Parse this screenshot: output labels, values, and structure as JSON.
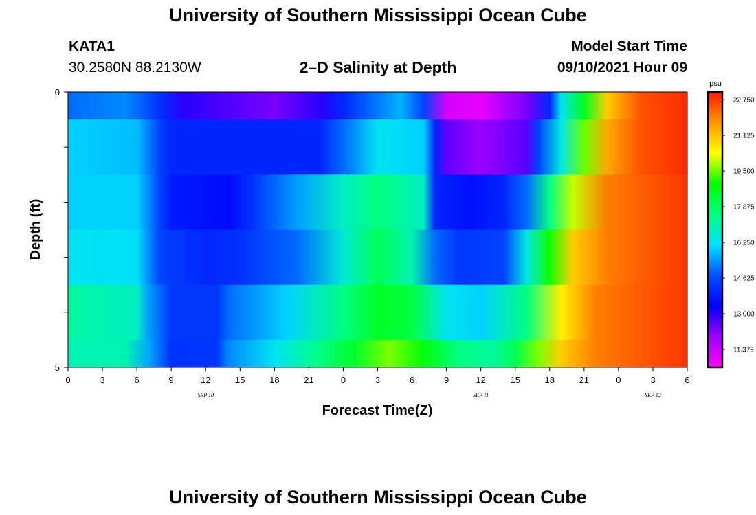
{
  "header": {
    "title": "University of Southern Mississippi Ocean Cube",
    "station_id": "KATA1",
    "coordinates": "30.2580N  88.2130W",
    "plot_title": "2–D Salinity at Depth",
    "model_start_label": "Model Start Time",
    "model_start_value": "09/10/2021 Hour 09"
  },
  "footer": {
    "title": "University of Southern Mississippi Ocean Cube"
  },
  "chart_data": {
    "type": "heatmap",
    "xlabel": "Forecast Time(Z)",
    "ylabel": "Depth (ft)",
    "ylim": [
      0,
      5
    ],
    "y_ticks": [
      0,
      5
    ],
    "x_tick_labels": [
      "0",
      "3",
      "6",
      "9",
      "12",
      "15",
      "18",
      "21",
      "0",
      "3",
      "6",
      "9",
      "12",
      "15",
      "18",
      "21",
      "0",
      "3",
      "6"
    ],
    "x_date_labels": [
      {
        "text": "SEP 10",
        "at_hour": 12
      },
      {
        "text": "SEP 11",
        "at_hour": 36
      },
      {
        "text": "SEP 12",
        "at_hour": 51
      }
    ],
    "x_range_hours": [
      0,
      54
    ],
    "colorbar": {
      "unit": "psu",
      "tick_labels": [
        "22.750",
        "21.125",
        "19.500",
        "17.875",
        "16.250",
        "14.625",
        "13.000",
        "11.375"
      ],
      "tick_values": [
        22.75,
        21.125,
        19.5,
        17.875,
        16.25,
        14.625,
        13.0,
        11.375
      ],
      "range": [
        10.56,
        23.1
      ],
      "colors": [
        "#ff00ff",
        "#a000ff",
        "#0000ff",
        "#0050ff",
        "#00e0ff",
        "#00ff80",
        "#00ff00",
        "#ffff00",
        "#ff9900",
        "#ff1a00"
      ]
    },
    "depth_layers": [
      {
        "depth_range": [
          0,
          0.5
        ],
        "points": [
          [
            0,
            15.0
          ],
          [
            5,
            15.3
          ],
          [
            8,
            14.2
          ],
          [
            10,
            13.0
          ],
          [
            18,
            12.3
          ],
          [
            22,
            13.0
          ],
          [
            24,
            14.0
          ],
          [
            29,
            15.7
          ],
          [
            31,
            14.5
          ],
          [
            33,
            11.2
          ],
          [
            36,
            10.9
          ],
          [
            40,
            12.3
          ],
          [
            42,
            14.0
          ],
          [
            43,
            16.3
          ],
          [
            45,
            18.6
          ],
          [
            47,
            21.0
          ],
          [
            50,
            22.5
          ],
          [
            54,
            22.9
          ]
        ]
      },
      {
        "depth_range": [
          0.5,
          1.5
        ],
        "points": [
          [
            0,
            16.0
          ],
          [
            6,
            15.8
          ],
          [
            8,
            14.5
          ],
          [
            9,
            14.0
          ],
          [
            22,
            14.0
          ],
          [
            24,
            15.0
          ],
          [
            27,
            16.3
          ],
          [
            31,
            16.0
          ],
          [
            32,
            14.0
          ],
          [
            33,
            12.5
          ],
          [
            36,
            12.0
          ],
          [
            40,
            12.6
          ],
          [
            41,
            14.5
          ],
          [
            43,
            16.5
          ],
          [
            45,
            19.5
          ],
          [
            47,
            21.5
          ],
          [
            50,
            22.5
          ],
          [
            54,
            22.9
          ]
        ]
      },
      {
        "depth_range": [
          1.5,
          2.5
        ],
        "points": [
          [
            0,
            16.0
          ],
          [
            6,
            16.0
          ],
          [
            8,
            14.5
          ],
          [
            9,
            13.8
          ],
          [
            14,
            13.5
          ],
          [
            16,
            14.2
          ],
          [
            20,
            15.5
          ],
          [
            24,
            16.8
          ],
          [
            27,
            17.6
          ],
          [
            31,
            16.8
          ],
          [
            32,
            14.0
          ],
          [
            35,
            13.6
          ],
          [
            38,
            14.0
          ],
          [
            40,
            15.0
          ],
          [
            42,
            17.5
          ],
          [
            44,
            20.0
          ],
          [
            47,
            22.0
          ],
          [
            54,
            22.8
          ]
        ]
      },
      {
        "depth_range": [
          2.5,
          3.5
        ],
        "points": [
          [
            0,
            16.3
          ],
          [
            6,
            16.2
          ],
          [
            8,
            14.5
          ],
          [
            12,
            14.0
          ],
          [
            15,
            14.2
          ],
          [
            20,
            15.0
          ],
          [
            24,
            16.6
          ],
          [
            27,
            18.0
          ],
          [
            30,
            17.0
          ],
          [
            32,
            15.0
          ],
          [
            34,
            14.3
          ],
          [
            38,
            14.5
          ],
          [
            40,
            16.5
          ],
          [
            42,
            19.0
          ],
          [
            44,
            21.0
          ],
          [
            47,
            22.0
          ],
          [
            54,
            22.8
          ]
        ]
      },
      {
        "depth_range": [
          3.5,
          4.5
        ],
        "points": [
          [
            0,
            17.2
          ],
          [
            6,
            16.8
          ],
          [
            7,
            15.5
          ],
          [
            9,
            14.3
          ],
          [
            13,
            14.3
          ],
          [
            14,
            15.0
          ],
          [
            19,
            16.0
          ],
          [
            24,
            17.5
          ],
          [
            27,
            18.5
          ],
          [
            30,
            18.2
          ],
          [
            33,
            16.3
          ],
          [
            36,
            16.0
          ],
          [
            40,
            17.5
          ],
          [
            43,
            20.5
          ],
          [
            46,
            22.0
          ],
          [
            54,
            22.8
          ]
        ]
      },
      {
        "depth_range": [
          4.5,
          5.0
        ],
        "points": [
          [
            0,
            17.0
          ],
          [
            5,
            17.0
          ],
          [
            7,
            15.6
          ],
          [
            9,
            14.2
          ],
          [
            13,
            14.3
          ],
          [
            14,
            15.3
          ],
          [
            18,
            16.3
          ],
          [
            22,
            17.5
          ],
          [
            25,
            18.5
          ],
          [
            28,
            19.6
          ],
          [
            31,
            18.8
          ],
          [
            34,
            17.5
          ],
          [
            37,
            17.2
          ],
          [
            39,
            18.0
          ],
          [
            41,
            19.6
          ],
          [
            43,
            21.0
          ],
          [
            46,
            22.0
          ],
          [
            54,
            22.8
          ]
        ]
      }
    ]
  }
}
